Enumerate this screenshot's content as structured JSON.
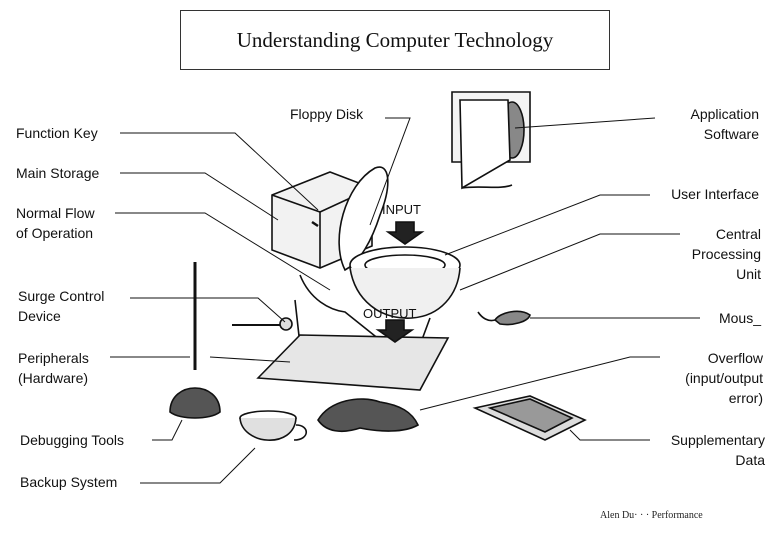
{
  "title": "Understanding Computer Technology",
  "labels_left": [
    "Function Key",
    "Main Storage",
    "Normal Flow\nof Operation",
    "Surge Control\nDevice",
    "Peripherals\n(Hardware)",
    "Debugging Tools",
    "Backup System"
  ],
  "labels_right": [
    "Application\nSoftware",
    "User Interface",
    "Central\nProcessing\nUnit",
    "Mous_",
    "Overflow\n(input/output\nerror)",
    "Supplementary\nData"
  ],
  "label_top": "Floppy Disk",
  "arrow_input": "INPUT",
  "arrow_output": "OUTPUT",
  "footer": "Alen Du· · · Performance"
}
